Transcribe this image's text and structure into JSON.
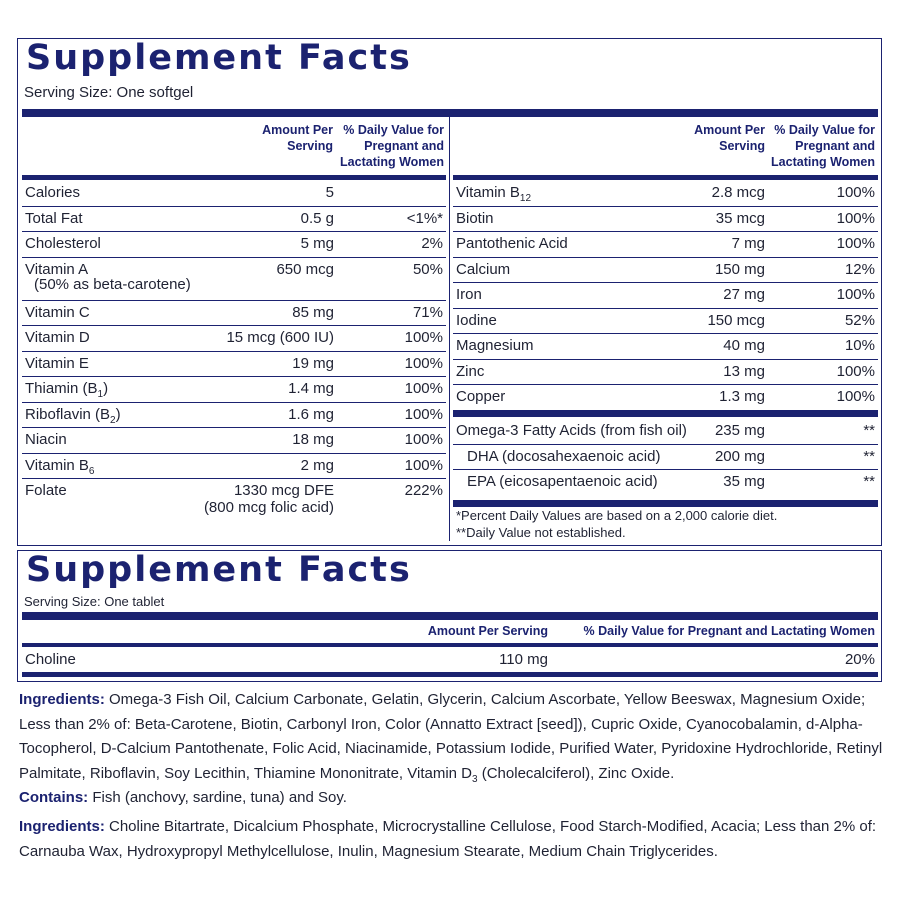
{
  "panel1": {
    "title": "Supplement Facts",
    "serving": "Serving Size: One softgel",
    "hdr_amount": "Amount Per Serving",
    "hdr_dv": "% Daily Value for Pregnant and Lactating Women",
    "left_rows": [
      {
        "name": "Calories",
        "amount": "5",
        "dv": ""
      },
      {
        "name": "Total Fat",
        "amount": "0.5 g",
        "dv": "<1%*"
      },
      {
        "name": "Cholesterol",
        "amount": "5 mg",
        "dv": "2%"
      },
      {
        "name": "Vitamin A",
        "sub": "(50% as beta-carotene)",
        "amount": "650 mcg",
        "dv": "50%"
      },
      {
        "name": "Vitamin C",
        "amount": "85 mg",
        "dv": "71%"
      },
      {
        "name": "Vitamin D",
        "amount": "15 mcg (600 IU)",
        "dv": "100%"
      },
      {
        "name": "Vitamin E",
        "amount": "19 mg",
        "dv": "100%"
      },
      {
        "name": "Thiamin (B1)",
        "amount": "1.4 mg",
        "dv": "100%"
      },
      {
        "name": "Riboflavin (B2)",
        "amount": "1.6 mg",
        "dv": "100%"
      },
      {
        "name": "Niacin",
        "amount": "18 mg",
        "dv": "100%"
      },
      {
        "name": "Vitamin B6",
        "amount": "2 mg",
        "dv": "100%"
      },
      {
        "name": "Folate",
        "amount": "1330 mcg DFE",
        "amount2": "(800 mcg folic acid)",
        "dv": "222%"
      }
    ],
    "right_rows": [
      {
        "name": "Vitamin B12",
        "amount": "2.8 mcg",
        "dv": "100%"
      },
      {
        "name": "Biotin",
        "amount": "35 mcg",
        "dv": "100%"
      },
      {
        "name": "Pantothenic Acid",
        "amount": "7 mg",
        "dv": "100%"
      },
      {
        "name": "Calcium",
        "amount": "150 mg",
        "dv": "12%"
      },
      {
        "name": "Iron",
        "amount": "27 mg",
        "dv": "100%"
      },
      {
        "name": "Iodine",
        "amount": "150 mcg",
        "dv": "52%"
      },
      {
        "name": "Magnesium",
        "amount": "40 mg",
        "dv": "10%"
      },
      {
        "name": "Zinc",
        "amount": "13 mg",
        "dv": "100%"
      },
      {
        "name": "Copper",
        "amount": "1.3 mg",
        "dv": "100%"
      }
    ],
    "omega_rows": [
      {
        "name": "Omega-3 Fatty Acids (from fish oil)",
        "amount": "235 mg",
        "dv": "**"
      },
      {
        "name": "DHA (docosahexaenoic acid)",
        "amount": "200 mg",
        "dv": "**"
      },
      {
        "name": "EPA (eicosapentaenoic acid)",
        "amount": "35 mg",
        "dv": "**"
      }
    ],
    "footnote1": "*Percent Daily Values are based on a 2,000 calorie diet.",
    "footnote2": "**Daily Value not established."
  },
  "panel2": {
    "title": "Supplement Facts",
    "serving": "Serving Size: One tablet",
    "hdr_amount": "Amount Per Serving",
    "hdr_dv": "% Daily Value for Pregnant and Lactating Women",
    "row": {
      "name": "Choline",
      "amount": "110 mg",
      "dv": "20%"
    }
  },
  "ingredients1": {
    "label": "Ingredients:",
    "text": " Omega-3 Fish Oil, Calcium Carbonate, Gelatin, Glycerin, Calcium Ascorbate, Yellow Beeswax, Magnesium Oxide; Less than 2% of: Beta-Carotene, Biotin, Carbonyl Iron, Color (Annatto Extract [seed]), Cupric Oxide, Cyanocobalamin, d-Alpha-Tocopherol, D-Calcium Pantothenate, Folic Acid, Niacinamide, Potassium Iodide, Purified Water, Pyridoxine Hydrochloride, Retinyl Palmitate, Riboflavin, Soy Lecithin, Thiamine Mononitrate, Vitamin D3 (Cholecalciferol), Zinc Oxide."
  },
  "contains": {
    "label": "Contains:",
    "text": " Fish (anchovy, sardine, tuna) and Soy."
  },
  "ingredients2": {
    "label": "Ingredients:",
    "text": " Choline Bitartrate, Dicalcium Phosphate, Microcrystalline Cellulose, Food Starch-Modified, Acacia; Less than 2% of: Carnauba Wax, Hydroxypropyl Methylcellulose, Inulin, Magnesium Stearate, Medium Chain Triglycerides."
  }
}
